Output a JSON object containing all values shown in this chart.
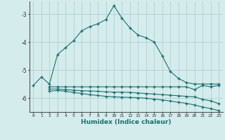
{
  "xlabel": "Humidex (Indice chaleur)",
  "background_color": "#d4ecec",
  "grid_color": "#aacccc",
  "line_color": "#1a7070",
  "marker": "+",
  "xlim": [
    -0.5,
    23.5
  ],
  "ylim": [
    -6.5,
    -2.55
  ],
  "yticks": [
    -6,
    -5,
    -4,
    -3
  ],
  "xticks": [
    0,
    1,
    2,
    3,
    4,
    5,
    6,
    7,
    8,
    9,
    10,
    11,
    12,
    13,
    14,
    15,
    16,
    17,
    18,
    19,
    20,
    21,
    22,
    23
  ],
  "series1": {
    "x": [
      0,
      1,
      2,
      3,
      4,
      5,
      6,
      7,
      8,
      9,
      10,
      11,
      12,
      13,
      14,
      15,
      16,
      17,
      18,
      19,
      20,
      21,
      22,
      23
    ],
    "y": [
      -5.55,
      -5.25,
      -5.5,
      -4.45,
      -4.2,
      -3.95,
      -3.6,
      -3.45,
      -3.35,
      -3.2,
      -2.7,
      -3.15,
      -3.5,
      -3.75,
      -3.85,
      -4.0,
      -4.5,
      -5.05,
      -5.3,
      -5.45,
      -5.5,
      -5.5,
      -5.5,
      -5.5
    ]
  },
  "series2": {
    "x": [
      2,
      3,
      4,
      5,
      6,
      7,
      8,
      9,
      10,
      11,
      12,
      13,
      14,
      15,
      16,
      17,
      18,
      19,
      20,
      21,
      22,
      23
    ],
    "y": [
      -5.6,
      -5.6,
      -5.6,
      -5.6,
      -5.6,
      -5.6,
      -5.6,
      -5.6,
      -5.6,
      -5.6,
      -5.6,
      -5.6,
      -5.6,
      -5.6,
      -5.6,
      -5.6,
      -5.6,
      -5.6,
      -5.7,
      -5.55,
      -5.6,
      -5.55
    ]
  },
  "series3": {
    "x": [
      2,
      3,
      4,
      5,
      6,
      7,
      8,
      9,
      10,
      11,
      12,
      13,
      14,
      15,
      16,
      17,
      18,
      19,
      20,
      21,
      22,
      23
    ],
    "y": [
      -5.68,
      -5.68,
      -5.7,
      -5.72,
      -5.74,
      -5.75,
      -5.76,
      -5.78,
      -5.79,
      -5.79,
      -5.8,
      -5.82,
      -5.84,
      -5.86,
      -5.88,
      -5.9,
      -5.92,
      -5.94,
      -5.96,
      -6.05,
      -6.1,
      -6.2
    ]
  },
  "series4": {
    "x": [
      2,
      3,
      4,
      5,
      6,
      7,
      8,
      9,
      10,
      11,
      12,
      13,
      14,
      15,
      16,
      17,
      18,
      19,
      20,
      21,
      22,
      23
    ],
    "y": [
      -5.76,
      -5.73,
      -5.76,
      -5.8,
      -5.84,
      -5.88,
      -5.91,
      -5.94,
      -5.96,
      -5.97,
      -5.98,
      -5.99,
      -6.01,
      -6.04,
      -6.07,
      -6.11,
      -6.15,
      -6.19,
      -6.25,
      -6.32,
      -6.38,
      -6.45
    ]
  }
}
